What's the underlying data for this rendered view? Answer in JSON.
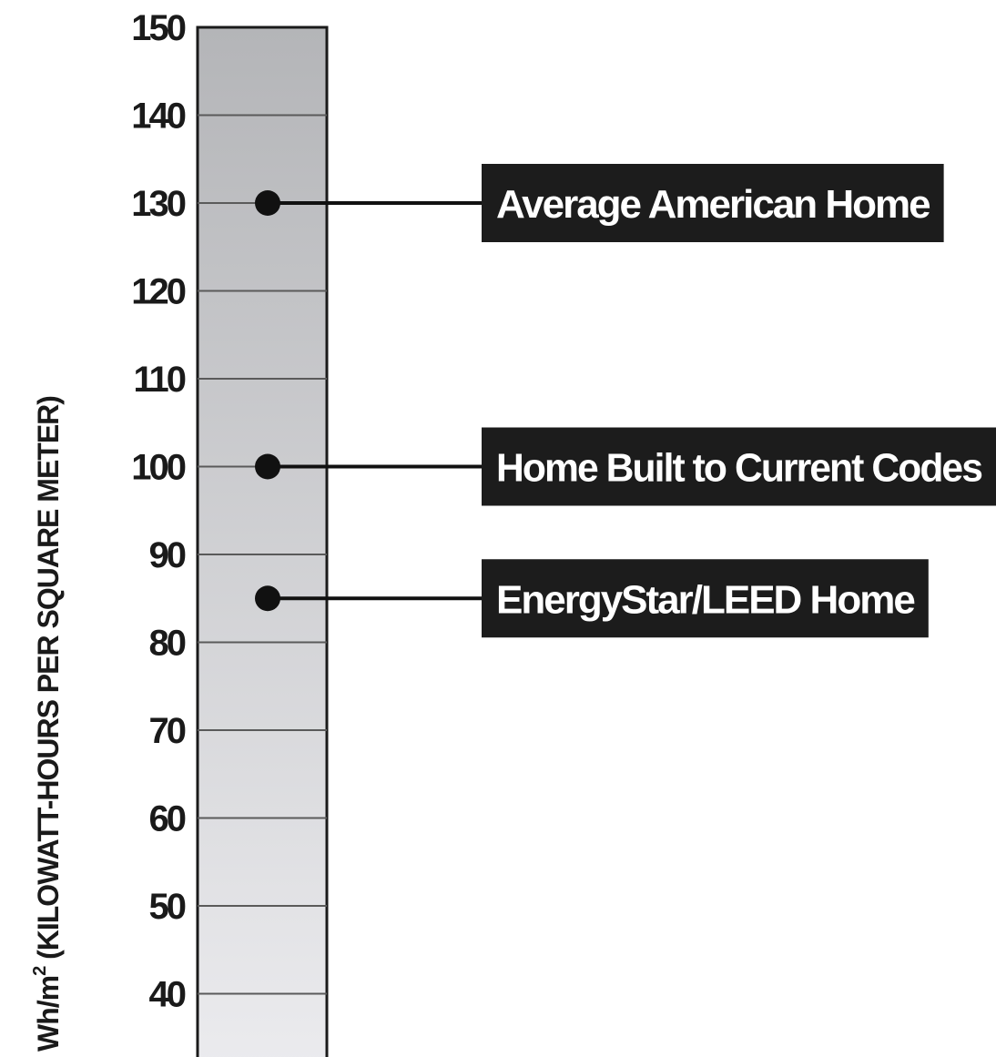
{
  "chart_data": {
    "type": "scale",
    "ylabel_main": "Wh/m",
    "ylabel_sup": "2",
    "ylabel_rest": " (KILOWATT-HOURS PER SQUARE METER)",
    "yticks": [
      40,
      50,
      60,
      70,
      80,
      90,
      100,
      110,
      120,
      130,
      140,
      150
    ],
    "ylim": [
      30,
      150
    ],
    "grid": true,
    "points": [
      {
        "label": "Average American Home",
        "value": 130
      },
      {
        "label": "Home Built to Current Codes",
        "value": 100
      },
      {
        "label": "EnergyStar/LEED Home",
        "value": 85
      }
    ]
  },
  "colors": {
    "bar_top": "#b4b5b8",
    "bar_bottom": "#ececef",
    "marker": "#111111",
    "label_bg": "#1c1c1c",
    "label_text": "#ffffff"
  }
}
